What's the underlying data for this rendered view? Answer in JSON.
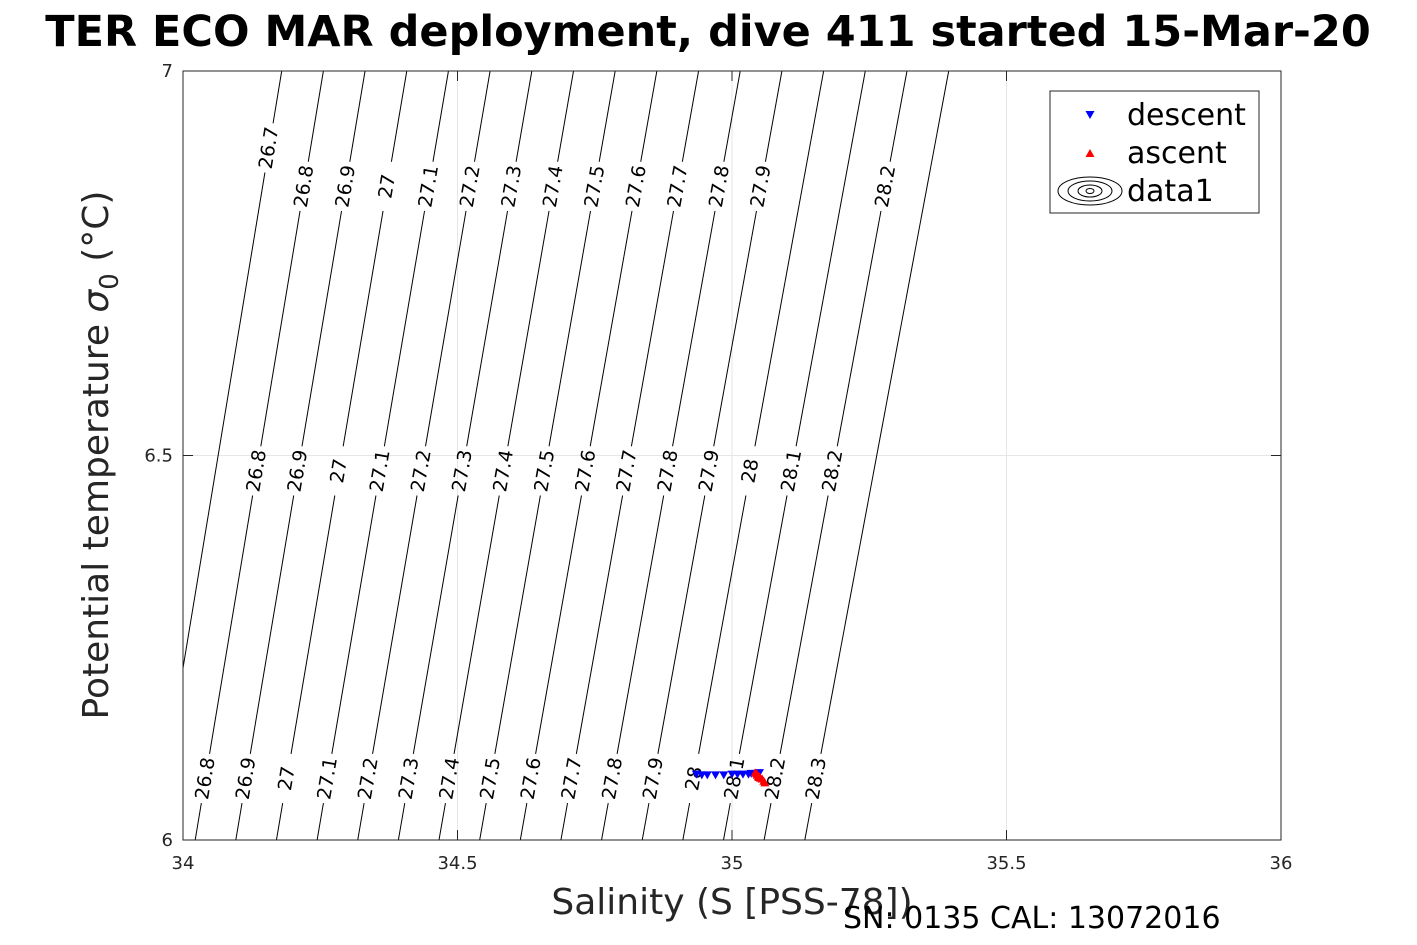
{
  "chart_data": {
    "type": "scatter",
    "title": "TER ECO MAR deployment, dive 411 started 15-Mar-20",
    "xlabel": "Salinity (S [PSS-78])",
    "ylabel_main": "Potential temperature ",
    "ylabel_sigma": "σ",
    "ylabel_sub": "0",
    "ylabel_unit": " (°C)",
    "xlim": [
      34,
      36
    ],
    "ylim": [
      6,
      7
    ],
    "xticks": [
      {
        "value": 34,
        "label": "34"
      },
      {
        "value": 34.5,
        "label": "34.5"
      },
      {
        "value": 35,
        "label": "35"
      },
      {
        "value": 35.5,
        "label": "35.5"
      },
      {
        "value": 36,
        "label": "36"
      }
    ],
    "yticks": [
      {
        "value": 6,
        "label": "6"
      },
      {
        "value": 6.5,
        "label": "6.5"
      },
      {
        "value": 7,
        "label": "7"
      }
    ],
    "grid": true,
    "legend_position": "top-right",
    "legend": [
      {
        "label": "descent",
        "marker": "triangle-down",
        "color": "#0000ff"
      },
      {
        "label": "ascent",
        "marker": "triangle-up",
        "color": "#ff0000"
      },
      {
        "label": "data1",
        "marker": "contour",
        "color": "#000000"
      }
    ],
    "isopycnals": [
      {
        "x_bottom": 33.9482,
        "x_top": 34.1798,
        "label": "26.7",
        "labels_at": [
          6.9
        ]
      },
      {
        "x_bottom": 34.0222,
        "x_top": 34.2557,
        "label": "26.8",
        "labels_at": [
          6.08,
          6.48,
          6.85
        ]
      },
      {
        "x_bottom": 34.0962,
        "x_top": 34.3316,
        "label": "26.9",
        "labels_at": [
          6.08,
          6.48,
          6.85
        ]
      },
      {
        "x_bottom": 34.1702,
        "x_top": 34.4076,
        "label": "27",
        "labels_at": [
          6.08,
          6.48,
          6.85
        ]
      },
      {
        "x_bottom": 34.2443,
        "x_top": 34.4835,
        "label": "27.1",
        "labels_at": [
          6.08,
          6.48,
          6.85
        ]
      },
      {
        "x_bottom": 34.3183,
        "x_top": 34.5594,
        "label": "27.2",
        "labels_at": [
          6.08,
          6.48,
          6.85
        ]
      },
      {
        "x_bottom": 34.3923,
        "x_top": 34.6354,
        "label": "27.3",
        "labels_at": [
          6.08,
          6.48,
          6.85
        ]
      },
      {
        "x_bottom": 34.4663,
        "x_top": 34.7113,
        "label": "27.4",
        "labels_at": [
          6.08,
          6.48,
          6.85
        ]
      },
      {
        "x_bottom": 34.5404,
        "x_top": 34.7872,
        "label": "27.5",
        "labels_at": [
          6.08,
          6.48,
          6.85
        ]
      },
      {
        "x_bottom": 34.6144,
        "x_top": 34.8631,
        "label": "27.6",
        "labels_at": [
          6.08,
          6.48,
          6.85
        ]
      },
      {
        "x_bottom": 34.6884,
        "x_top": 34.9391,
        "label": "27.7",
        "labels_at": [
          6.08,
          6.48,
          6.85
        ]
      },
      {
        "x_bottom": 34.7624,
        "x_top": 35.015,
        "label": "27.8",
        "labels_at": [
          6.08,
          6.48,
          6.85
        ]
      },
      {
        "x_bottom": 34.8365,
        "x_top": 35.0909,
        "label": "27.9",
        "labels_at": [
          6.08,
          6.48,
          6.85
        ]
      },
      {
        "x_bottom": 34.9105,
        "x_top": 35.1669,
        "label": "28",
        "labels_at": [
          6.08,
          6.48
        ]
      },
      {
        "x_bottom": 34.9845,
        "x_top": 35.2428,
        "label": "28.1",
        "labels_at": [
          6.08,
          6.48
        ]
      },
      {
        "x_bottom": 35.0585,
        "x_top": 35.3187,
        "label": "28.2",
        "labels_at": [
          6.08,
          6.48,
          6.85
        ]
      },
      {
        "x_bottom": 35.1326,
        "x_top": 35.3947,
        "label": "28.3",
        "labels_at": [
          6.08
        ]
      }
    ],
    "series": [
      {
        "name": "descent",
        "marker": "triangle-down",
        "color": "#0000ff",
        "points": [
          [
            34.935,
            6.085
          ],
          [
            34.945,
            6.084
          ],
          [
            34.955,
            6.084
          ],
          [
            34.97,
            6.084
          ],
          [
            34.985,
            6.084
          ],
          [
            35.0,
            6.085
          ],
          [
            35.01,
            6.085
          ],
          [
            35.02,
            6.085
          ],
          [
            35.03,
            6.085
          ],
          [
            35.035,
            6.086
          ],
          [
            35.04,
            6.085
          ],
          [
            35.045,
            6.086
          ],
          [
            35.05,
            6.087
          ]
        ]
      },
      {
        "name": "ascent",
        "marker": "triangle-up",
        "color": "#ff0000",
        "points": [
          [
            35.042,
            6.088
          ],
          [
            35.045,
            6.087
          ],
          [
            35.046,
            6.085
          ],
          [
            35.048,
            6.083
          ],
          [
            35.049,
            6.082
          ],
          [
            35.05,
            6.083
          ],
          [
            35.052,
            6.081
          ],
          [
            35.055,
            6.08
          ],
          [
            35.058,
            6.077
          ],
          [
            35.06,
            6.075
          ]
        ]
      }
    ]
  },
  "footer": {
    "sn_cal": "SN: 0135  CAL: 13072016"
  }
}
